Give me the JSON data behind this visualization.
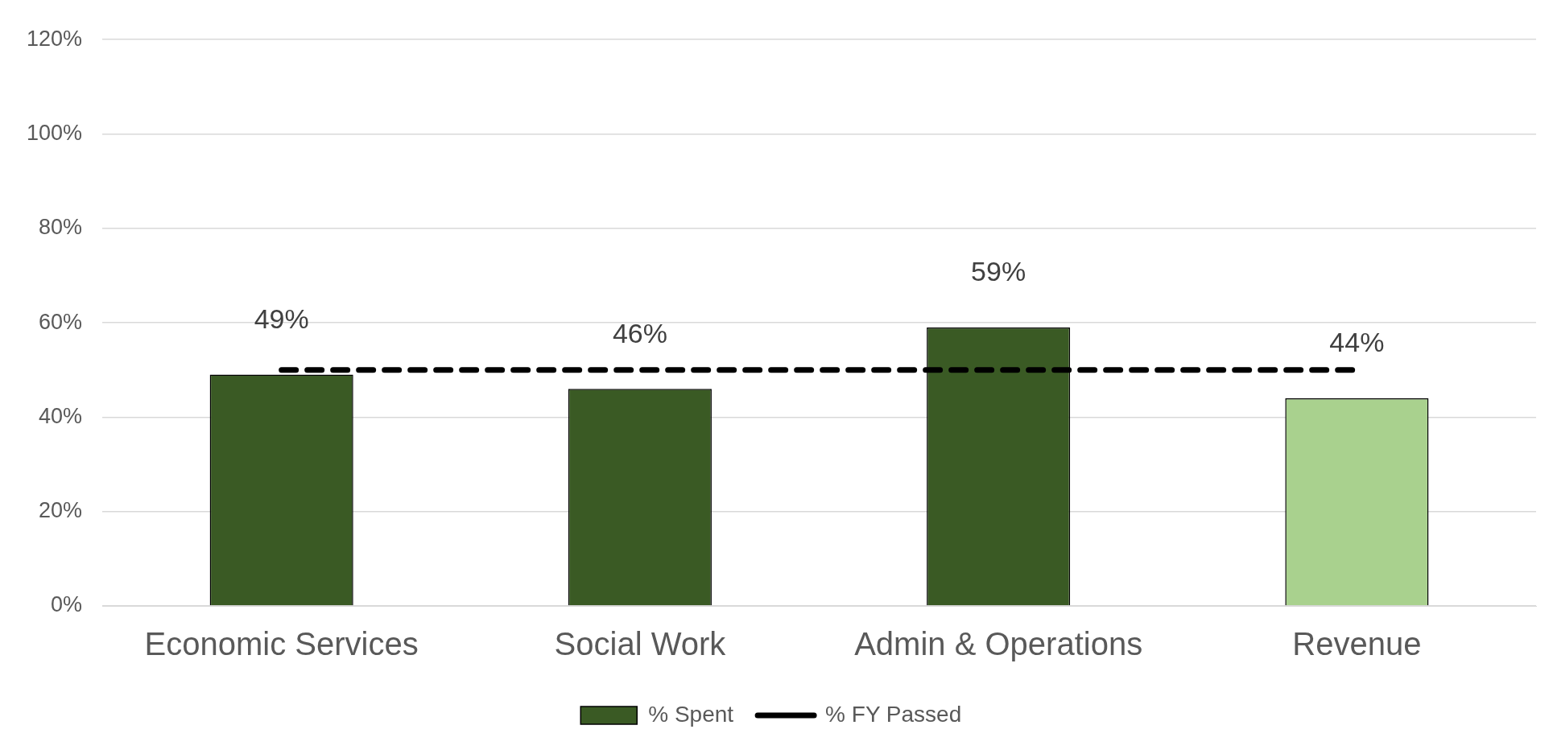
{
  "chart_data": {
    "type": "bar",
    "categories": [
      "Economic Services",
      "Social Work",
      "Admin & Operations",
      "Revenue"
    ],
    "series": [
      {
        "name": "% Spent",
        "color": "#3a5a24",
        "colors": [
          "#3a5a24",
          "#3a5a24",
          "#3a5a24",
          "#a9d18e"
        ],
        "values": [
          49,
          46,
          59,
          44
        ],
        "value_labels": [
          "49%",
          "46%",
          "59%",
          "44%"
        ]
      },
      {
        "name": "% FY Passed",
        "type": "line",
        "color": "#000000",
        "values": [
          50,
          50,
          50,
          50
        ],
        "line_style": "dashed",
        "marker": "none"
      }
    ],
    "ylim": [
      0,
      120
    ],
    "yticks": [
      {
        "value": 0,
        "label": "0%"
      },
      {
        "value": 20,
        "label": "20%"
      },
      {
        "value": 40,
        "label": "40%"
      },
      {
        "value": 60,
        "label": "60%"
      },
      {
        "value": 80,
        "label": "80%"
      },
      {
        "value": 100,
        "label": "100%"
      },
      {
        "value": 120,
        "label": "120%"
      }
    ],
    "grid": "y",
    "legend": "bottom"
  }
}
